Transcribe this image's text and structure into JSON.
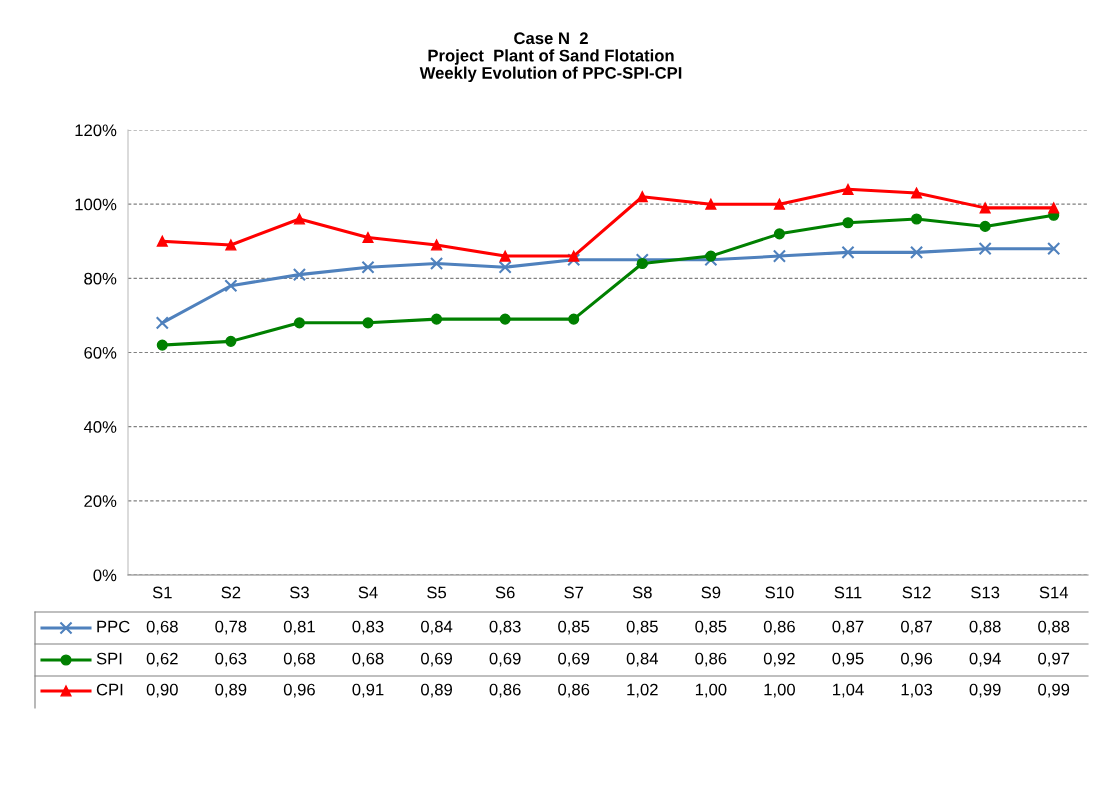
{
  "chart_data": {
    "type": "line",
    "title": "Case N  2\nProject  Plant of Sand Flotation\nWeekly Evolution of PPC-SPI-CPI",
    "categories": [
      "S1",
      "S2",
      "S3",
      "S4",
      "S5",
      "S6",
      "S7",
      "S8",
      "S9",
      "S10",
      "S11",
      "S12",
      "S13",
      "S14"
    ],
    "ylim": [
      0,
      1.2
    ],
    "yticks": [
      {
        "value": 0,
        "label": "0%"
      },
      {
        "value": 0.2,
        "label": "20%"
      },
      {
        "value": 0.4,
        "label": "40%"
      },
      {
        "value": 0.6,
        "label": "60%"
      },
      {
        "value": 0.8,
        "label": "80%"
      },
      {
        "value": 1.0,
        "label": "100%"
      },
      {
        "value": 1.2,
        "label": "120%"
      }
    ],
    "grid": "y",
    "legend": "bottom",
    "line_style": "solid",
    "series": [
      {
        "name": "PPC",
        "color": "#4f81bd",
        "marker": "cross",
        "values": [
          0.68,
          0.78,
          0.81,
          0.83,
          0.84,
          0.83,
          0.85,
          0.85,
          0.85,
          0.86,
          0.87,
          0.87,
          0.88,
          0.88
        ],
        "value_labels": [
          "0,68",
          "0,78",
          "0,81",
          "0,83",
          "0,84",
          "0,83",
          "0,85",
          "0,85",
          "0,85",
          "0,86",
          "0,87",
          "0,87",
          "0,88",
          "0,88"
        ]
      },
      {
        "name": "SPI",
        "color": "#008000",
        "marker": "circle",
        "values": [
          0.62,
          0.63,
          0.68,
          0.68,
          0.69,
          0.69,
          0.69,
          0.84,
          0.86,
          0.92,
          0.95,
          0.96,
          0.94,
          0.97
        ],
        "value_labels": [
          "0,62",
          "0,63",
          "0,68",
          "0,68",
          "0,69",
          "0,69",
          "0,69",
          "0,84",
          "0,86",
          "0,92",
          "0,95",
          "0,96",
          "0,94",
          "0,97"
        ]
      },
      {
        "name": "CPI",
        "color": "#ff0000",
        "marker": "triangle",
        "values": [
          0.9,
          0.89,
          0.96,
          0.91,
          0.89,
          0.86,
          0.86,
          1.02,
          1.0,
          1.0,
          1.04,
          1.03,
          0.99,
          0.99
        ],
        "value_labels": [
          "0,90",
          "0,89",
          "0,96",
          "0,91",
          "0,89",
          "0,86",
          "0,86",
          "1,02",
          "1,00",
          "1,00",
          "1,04",
          "1,03",
          "0,99",
          "0,99"
        ]
      }
    ]
  }
}
